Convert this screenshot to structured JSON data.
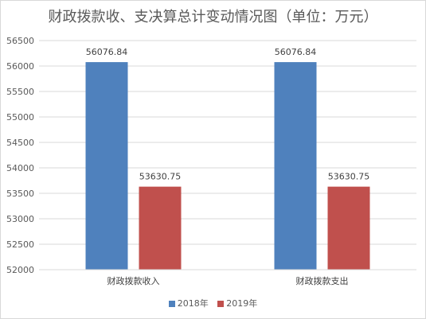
{
  "chart_data": {
    "type": "bar",
    "title": "财政拨款收、支决算总计变动情况图（单位：万元）",
    "categories": [
      "财政拨款收入",
      "财政拨款支出"
    ],
    "series": [
      {
        "name": "2018年",
        "color": "#4f81bd",
        "values": [
          56076.84,
          56076.84
        ],
        "labels": [
          "56076.84",
          "56076.84"
        ]
      },
      {
        "name": "2019年",
        "color": "#c0504d",
        "values": [
          53630.75,
          53630.75
        ],
        "labels": [
          "53630.75",
          "53630.75"
        ]
      }
    ],
    "ylim": [
      52000,
      56500
    ],
    "yticks": [
      52000,
      52500,
      53000,
      53500,
      54000,
      54500,
      55000,
      55500,
      56000,
      56500
    ],
    "grid": true,
    "legend_position": "bottom"
  }
}
